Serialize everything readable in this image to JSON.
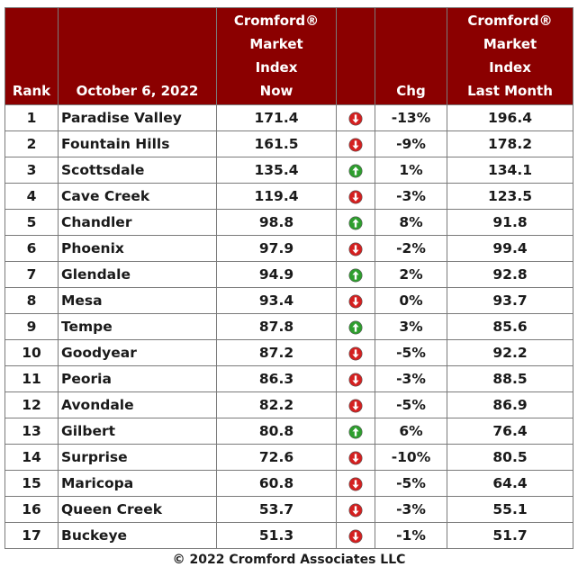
{
  "header": {
    "rank": "Rank",
    "date": "October 6, 2022",
    "now_lines": [
      "Cromford®",
      "Market",
      "Index",
      "Now"
    ],
    "chg": "Chg",
    "last_lines": [
      "Cromford®",
      "Market",
      "Index",
      "Last Month"
    ]
  },
  "colors": {
    "header_bg": "#8b0000",
    "up": "#2e9e2e",
    "down": "#d42020"
  },
  "chart_data": {
    "type": "table",
    "columns": [
      "Rank",
      "October 6, 2022",
      "Cromford® Market Index Now",
      "",
      "Chg",
      "Cromford® Market Index Last Month"
    ],
    "rows": [
      {
        "rank": "1",
        "city": "Paradise Valley",
        "now": "171.4",
        "dir": "down",
        "chg": "-13%",
        "last": "196.4"
      },
      {
        "rank": "2",
        "city": "Fountain Hills",
        "now": "161.5",
        "dir": "down",
        "chg": "-9%",
        "last": "178.2"
      },
      {
        "rank": "3",
        "city": "Scottsdale",
        "now": "135.4",
        "dir": "up",
        "chg": "1%",
        "last": "134.1"
      },
      {
        "rank": "4",
        "city": "Cave Creek",
        "now": "119.4",
        "dir": "down",
        "chg": "-3%",
        "last": "123.5"
      },
      {
        "rank": "5",
        "city": "Chandler",
        "now": "98.8",
        "dir": "up",
        "chg": "8%",
        "last": "91.8"
      },
      {
        "rank": "6",
        "city": "Phoenix",
        "now": "97.9",
        "dir": "down",
        "chg": "-2%",
        "last": "99.4"
      },
      {
        "rank": "7",
        "city": "Glendale",
        "now": "94.9",
        "dir": "up",
        "chg": "2%",
        "last": "92.8"
      },
      {
        "rank": "8",
        "city": "Mesa",
        "now": "93.4",
        "dir": "down",
        "chg": "0%",
        "last": "93.7"
      },
      {
        "rank": "9",
        "city": "Tempe",
        "now": "87.8",
        "dir": "up",
        "chg": "3%",
        "last": "85.6"
      },
      {
        "rank": "10",
        "city": "Goodyear",
        "now": "87.2",
        "dir": "down",
        "chg": "-5%",
        "last": "92.2"
      },
      {
        "rank": "11",
        "city": "Peoria",
        "now": "86.3",
        "dir": "down",
        "chg": "-3%",
        "last": "88.5"
      },
      {
        "rank": "12",
        "city": "Avondale",
        "now": "82.2",
        "dir": "down",
        "chg": "-5%",
        "last": "86.9"
      },
      {
        "rank": "13",
        "city": "Gilbert",
        "now": "80.8",
        "dir": "up",
        "chg": "6%",
        "last": "76.4"
      },
      {
        "rank": "14",
        "city": "Surprise",
        "now": "72.6",
        "dir": "down",
        "chg": "-10%",
        "last": "80.5"
      },
      {
        "rank": "15",
        "city": "Maricopa",
        "now": "60.8",
        "dir": "down",
        "chg": "-5%",
        "last": "64.4"
      },
      {
        "rank": "16",
        "city": "Queen Creek",
        "now": "53.7",
        "dir": "down",
        "chg": "-3%",
        "last": "55.1"
      },
      {
        "rank": "17",
        "city": "Buckeye",
        "now": "51.3",
        "dir": "down",
        "chg": "-1%",
        "last": "51.7"
      }
    ]
  },
  "footer": "© 2022 Cromford Associates LLC"
}
